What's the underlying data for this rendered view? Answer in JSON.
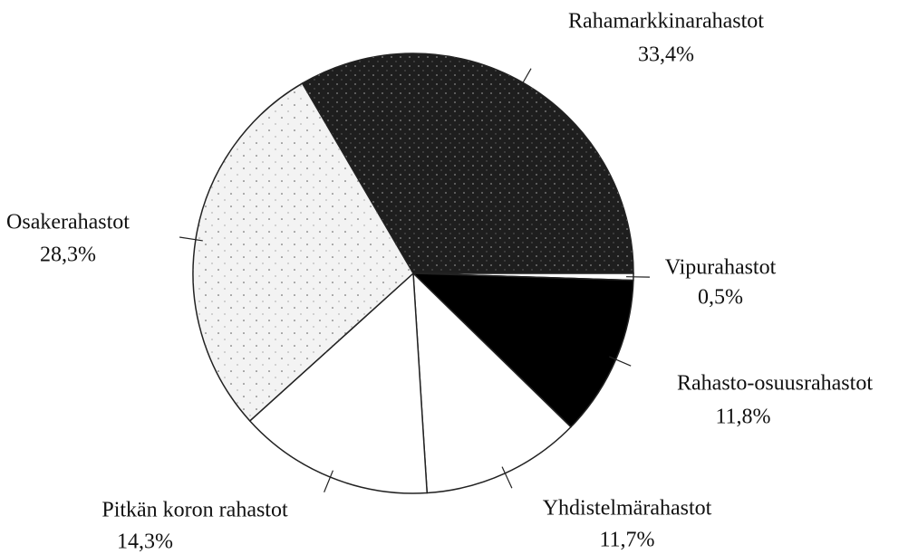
{
  "chart_data": {
    "type": "pie",
    "categories": [
      "Rahamarkkinarahastot",
      "Vipurahastot",
      "Rahasto-osuusrahastot",
      "Yhdistelmärahastot",
      "Pitkän koron rahastot",
      "Osakerahastot"
    ],
    "values": [
      33.4,
      0.5,
      11.8,
      11.7,
      14.3,
      28.3
    ],
    "value_labels": [
      "33,4%",
      "0,5%",
      "11,8%",
      "11,7%",
      "14,3%",
      "28,3%"
    ],
    "colors": [
      "#1e1e1e",
      "#ffffff",
      "#000000",
      "#ffffff",
      "#ffffff",
      "#f3f3f3"
    ]
  }
}
